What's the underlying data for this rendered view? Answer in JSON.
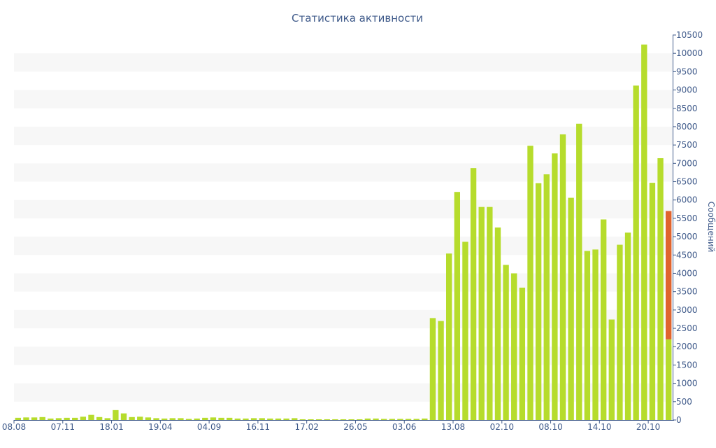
{
  "colors": {
    "bar": "#b6dc2c",
    "highlight": "#e0642e",
    "band": "#f7f7f7",
    "axis": "#3f5a8a",
    "text": "#3f5a8a"
  },
  "chart_data": {
    "type": "bar",
    "title": "Статистика активности",
    "xlabel": "",
    "ylabel": "Сообщений",
    "ylim": [
      0,
      10500
    ],
    "y_ticks": [
      0,
      500,
      1000,
      1500,
      2000,
      2500,
      3000,
      3500,
      4000,
      4500,
      5000,
      5500,
      6000,
      6500,
      7000,
      7500,
      8000,
      8500,
      9000,
      9500,
      10000,
      10500
    ],
    "grid": "alternating horizontal bands",
    "y_axis_position": "right",
    "x_tick_labels": [
      {
        "index": 0,
        "label": "08.08"
      },
      {
        "index": 6,
        "label": "07.11"
      },
      {
        "index": 12,
        "label": "18.01"
      },
      {
        "index": 18,
        "label": "19.04"
      },
      {
        "index": 24,
        "label": "04.09"
      },
      {
        "index": 30,
        "label": "16.11"
      },
      {
        "index": 36,
        "label": "17.02"
      },
      {
        "index": 42,
        "label": "26.05"
      },
      {
        "index": 48,
        "label": "03.06"
      },
      {
        "index": 54,
        "label": "13.08"
      },
      {
        "index": 60,
        "label": "02.10"
      },
      {
        "index": 66,
        "label": "08.10"
      },
      {
        "index": 72,
        "label": "14.10"
      },
      {
        "index": 78,
        "label": "20.10"
      }
    ],
    "values": [
      60,
      70,
      70,
      80,
      40,
      50,
      60,
      60,
      90,
      140,
      80,
      50,
      270,
      180,
      80,
      90,
      70,
      50,
      40,
      50,
      50,
      30,
      40,
      60,
      70,
      60,
      60,
      40,
      40,
      50,
      50,
      40,
      40,
      40,
      50,
      20,
      20,
      20,
      20,
      20,
      20,
      20,
      20,
      40,
      40,
      30,
      30,
      30,
      30,
      30,
      40,
      2780,
      2700,
      4540,
      6220,
      4860,
      6870,
      5810,
      5810,
      5250,
      4230,
      4000,
      3610,
      7480,
      6460,
      6700,
      7270,
      7790,
      6060,
      8080,
      4610,
      4650,
      5470,
      2740,
      4780,
      5110,
      9120,
      10240,
      6470,
      7140,
      5700
    ],
    "highlight": {
      "index": 80,
      "total": 5700,
      "lower_value": 2200
    }
  }
}
